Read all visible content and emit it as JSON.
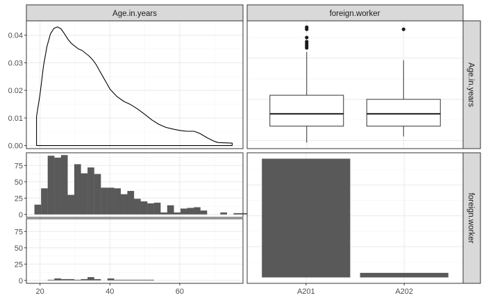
{
  "colors": {
    "background": "#ffffff",
    "panel_border": "#333333",
    "grid_major": "#ebebeb",
    "grid_minor": "#f5f5f5",
    "strip_fill": "#d9d9d9",
    "bar_fill": "#595959",
    "line": "#000000",
    "tick_text": "#4d4d4d"
  },
  "chart_data": {
    "type": "pairs",
    "strips": {
      "top": [
        "Age.in.years",
        "foreign.worker"
      ],
      "right": [
        "Age.in.years",
        "foreign.worker"
      ]
    },
    "panels": [
      {
        "id": "age-density",
        "type": "area",
        "y_ticks": [
          "0.00",
          "0.01",
          "0.02",
          "0.03",
          "0.04"
        ],
        "ylim": [
          -0.0011,
          0.0452
        ],
        "xlim": [
          16.1,
          78.1
        ],
        "grid": true,
        "x": [
          19,
          19,
          20,
          21,
          22,
          23,
          24,
          25,
          26,
          27,
          28,
          29,
          30,
          31,
          32,
          33,
          34,
          35,
          36,
          37,
          38,
          39,
          40,
          42,
          44,
          46,
          48,
          50,
          52,
          54,
          56,
          58,
          60,
          62,
          64,
          65,
          66,
          68,
          70,
          71,
          75,
          75,
          19
        ],
        "y": [
          0,
          0.0105,
          0.0185,
          0.029,
          0.036,
          0.0405,
          0.0425,
          0.043,
          0.0423,
          0.0405,
          0.0385,
          0.037,
          0.036,
          0.035,
          0.0345,
          0.0335,
          0.0325,
          0.0312,
          0.0295,
          0.0272,
          0.025,
          0.0228,
          0.0205,
          0.0178,
          0.016,
          0.0148,
          0.0132,
          0.0113,
          0.0093,
          0.0077,
          0.0066,
          0.006,
          0.0055,
          0.0052,
          0.0052,
          0.0048,
          0.0042,
          0.0027,
          0.0015,
          0.0011,
          0.0009,
          0,
          0
        ]
      },
      {
        "id": "fw-age-boxplot",
        "type": "boxplot",
        "categories": [
          "A201",
          "A202"
        ],
        "series": [
          {
            "min": 19,
            "q1": 27,
            "median": 33,
            "q3": 42,
            "max": 63,
            "outliers": [
              65,
              66,
              67,
              68,
              70,
              74,
              75
            ]
          },
          {
            "min": 22,
            "q1": 27,
            "median": 33,
            "q3": 40,
            "max": 59,
            "outliers": [
              74
            ]
          }
        ],
        "ylim": [
          16.1,
          78.1
        ],
        "grid": true
      },
      {
        "id": "age-hist-a201",
        "type": "bar",
        "y_ticks": [
          "0",
          "25",
          "50",
          "75"
        ],
        "ylim": [
          -4.5,
          94.5
        ],
        "x_start": 18.4,
        "bin_width": 1.9,
        "values": [
          15,
          40,
          90,
          87,
          91,
          30,
          77,
          63,
          72,
          62,
          41,
          41,
          40,
          31,
          36,
          24,
          20,
          17,
          18,
          3,
          14,
          3,
          9,
          10,
          11,
          6,
          0,
          0,
          3,
          0,
          2,
          2
        ]
      },
      {
        "id": "fw-count-bar",
        "type": "bar",
        "categories": [
          "A201",
          "A202"
        ],
        "values": [
          963,
          37
        ],
        "ylim": [
          -48,
          1011
        ]
      },
      {
        "id": "age-hist-a202",
        "type": "bar",
        "y_ticks": [
          "0",
          "25",
          "50",
          "75"
        ],
        "ylim": [
          -4.5,
          94.5
        ],
        "x_start": 18.4,
        "bin_width": 1.9,
        "values": [
          0,
          0,
          1,
          3,
          2,
          2,
          1,
          2,
          5,
          2,
          0,
          3,
          1,
          1,
          1,
          1,
          1,
          1,
          0,
          0,
          0,
          0,
          0,
          0,
          0,
          0,
          0,
          0,
          0,
          0,
          0,
          0
        ]
      }
    ],
    "x_ticks_age": [
      "20",
      "40",
      "60"
    ],
    "x_ticks_fw": [
      "A201",
      "A202"
    ],
    "grid": true
  }
}
